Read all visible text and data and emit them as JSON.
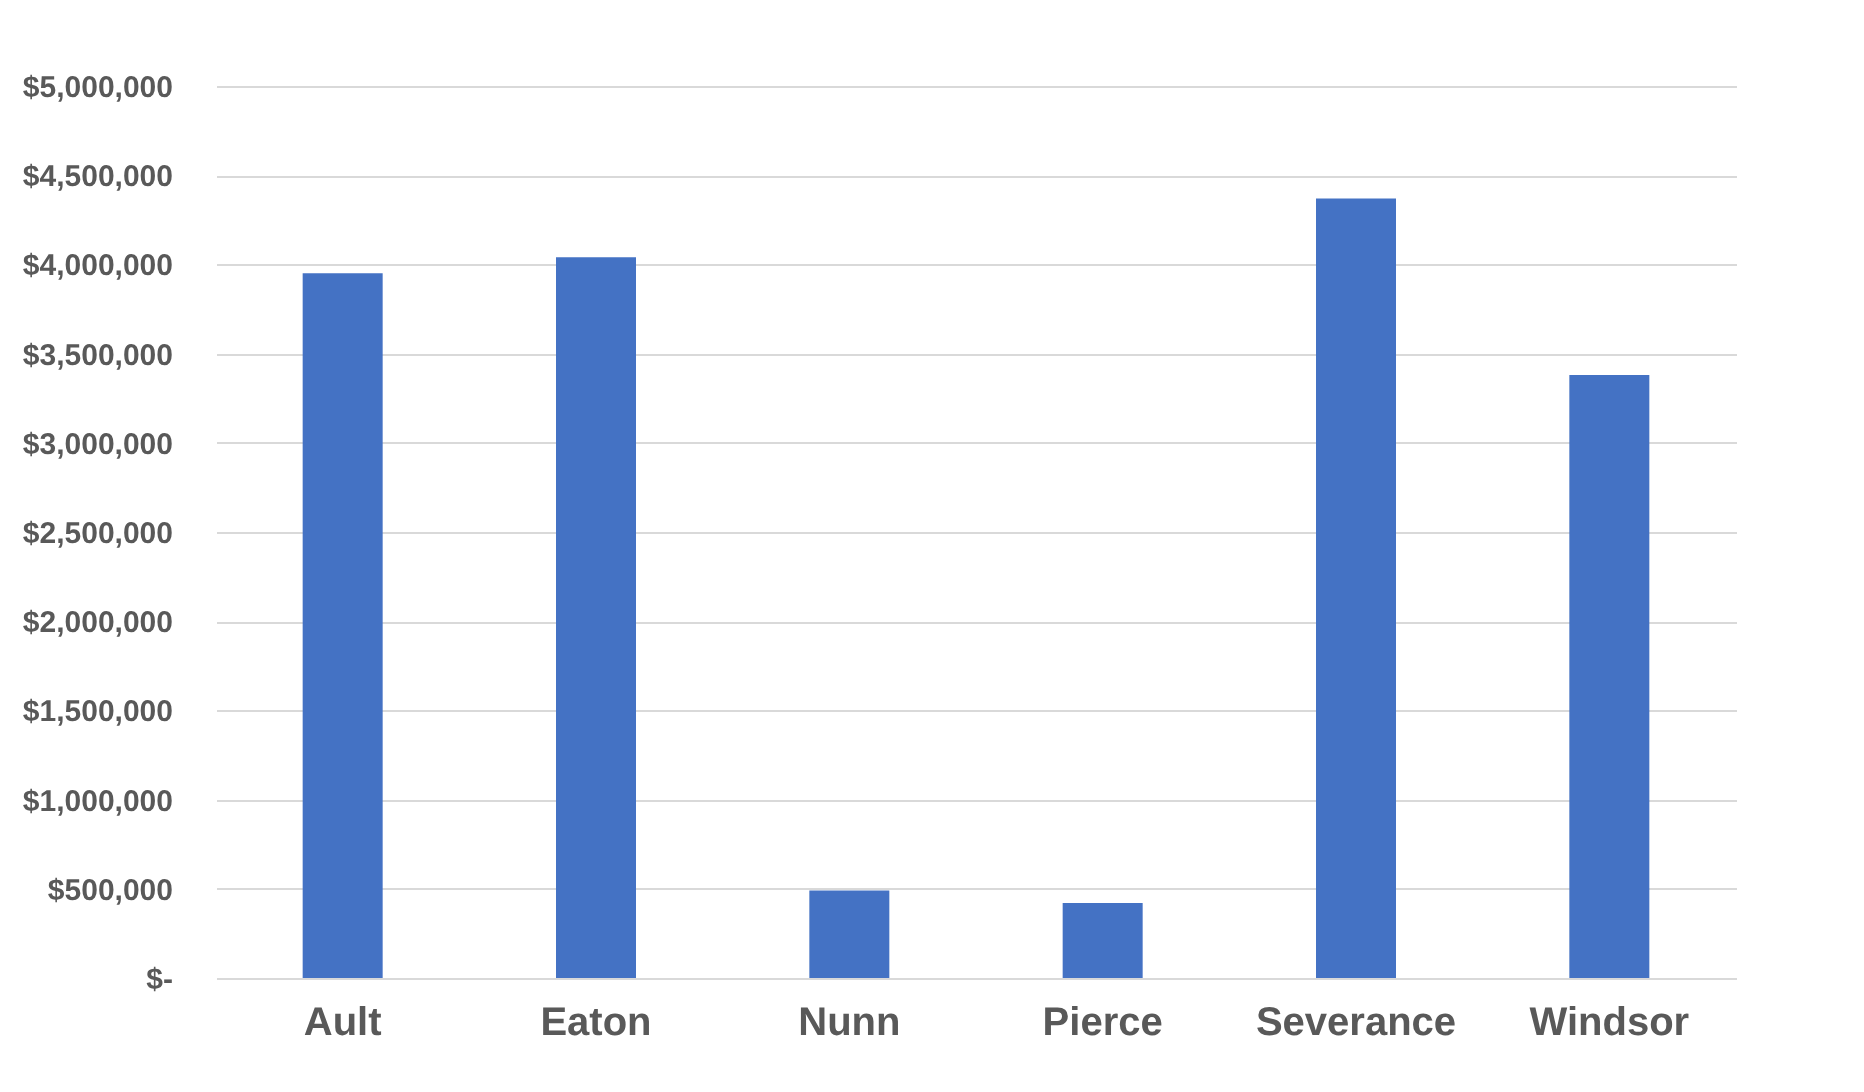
{
  "chart_data": {
    "type": "bar",
    "categories": [
      "Ault",
      "Eaton",
      "Nunn",
      "Pierce",
      "Severance",
      "Windsor"
    ],
    "values": [
      3950000,
      4040000,
      490000,
      420000,
      4370000,
      3380000
    ],
    "color": "#4472c4",
    "ylim": [
      0,
      5000000
    ],
    "yticks": [
      {
        "value": 0,
        "label": "$-"
      },
      {
        "value": 500000,
        "label": "$500,000"
      },
      {
        "value": 1000000,
        "label": "$1,000,000"
      },
      {
        "value": 1500000,
        "label": "$1,500,000"
      },
      {
        "value": 2000000,
        "label": "$2,000,000"
      },
      {
        "value": 2500000,
        "label": "$2,500,000"
      },
      {
        "value": 3000000,
        "label": "$3,000,000"
      },
      {
        "value": 3500000,
        "label": "$3,500,000"
      },
      {
        "value": 4000000,
        "label": "$4,000,000"
      },
      {
        "value": 4500000,
        "label": "$4,500,000"
      },
      {
        "value": 5000000,
        "label": "$5,000,000"
      }
    ],
    "grid": "y"
  }
}
